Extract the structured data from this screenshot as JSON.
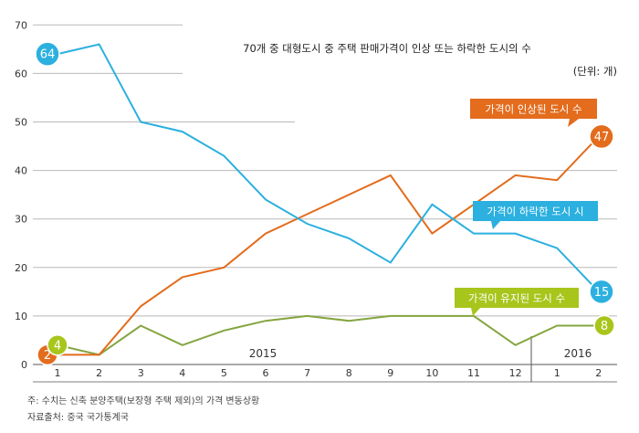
{
  "chart_data": {
    "type": "line",
    "title": "70개 중 대형도시 중 주택 판매가격이 인상 또는 하락한 도시의 수",
    "unit_note": "(단위: 개)",
    "ylim": [
      0,
      70
    ],
    "y_ticks": [
      "0",
      "10",
      "20",
      "30",
      "40",
      "50",
      "60",
      "70"
    ],
    "x": [
      "1",
      "2",
      "3",
      "4",
      "5",
      "6",
      "7",
      "8",
      "9",
      "10",
      "11",
      "12",
      "1",
      "2"
    ],
    "year_labels": [
      "2015",
      "2016"
    ],
    "series": [
      {
        "name": "가격이 인상된 도시 수",
        "color": "#e36c1d",
        "values": [
          2,
          2,
          12,
          18,
          20,
          27,
          31,
          35,
          39,
          27,
          33,
          39,
          38,
          47
        ],
        "start_label": "2",
        "end_label": "47"
      },
      {
        "name": "가격이 하락한 도시 시",
        "color": "#2bb0df",
        "values": [
          64,
          66,
          50,
          48,
          43,
          34,
          29,
          26,
          21,
          33,
          27,
          27,
          24,
          15
        ],
        "start_label": "64",
        "end_label": "15"
      },
      {
        "name": "가격이 유지된 도시 수",
        "color": "#84a53f",
        "badge_color": "#a8c51c",
        "values": [
          4,
          2,
          8,
          4,
          7,
          9,
          10,
          9,
          10,
          10,
          10,
          4,
          8,
          8
        ],
        "start_label": "4",
        "end_label": "8"
      }
    ]
  },
  "footnotes": {
    "note": "주: 수치는 신축 분양주택(보장형 주택 제외)의 가격 변동상황",
    "source": "자료출처: 중국 국가통계국"
  }
}
